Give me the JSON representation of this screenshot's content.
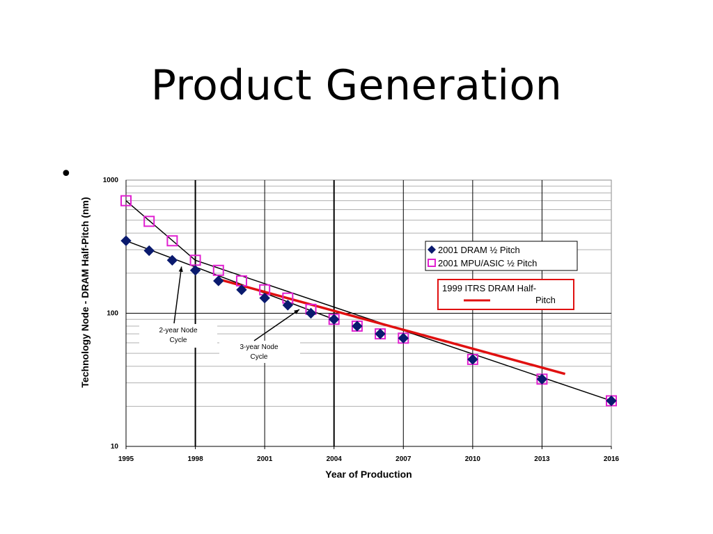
{
  "slide": {
    "title": "Product Generation",
    "bullet_symbol": "•"
  },
  "chart_data": {
    "type": "scatter",
    "xlabel": "Year of Production",
    "ylabel": "Technology Node - DRAM Half-Pitch (nm)",
    "x_ticks": [
      "1995",
      "1998",
      "2001",
      "2004",
      "2007",
      "2010",
      "2013",
      "2016"
    ],
    "y_ticks": [
      "10",
      "100",
      "1000"
    ],
    "xlim": [
      1995,
      2016
    ],
    "ylim": [
      10,
      1000
    ],
    "y_scale": "log",
    "grid": true,
    "legend_position": "right",
    "series": [
      {
        "name": "2001 DRAM ½ Pitch",
        "marker": "diamond",
        "color": "#0a1a6e",
        "points": [
          [
            1995,
            350
          ],
          [
            1996,
            295
          ],
          [
            1997,
            250
          ],
          [
            1998,
            210
          ],
          [
            1999,
            175
          ],
          [
            2000,
            150
          ],
          [
            2001,
            130
          ],
          [
            2002,
            115
          ],
          [
            2003,
            100
          ],
          [
            2004,
            90
          ],
          [
            2005,
            80
          ],
          [
            2006,
            70
          ],
          [
            2007,
            65
          ],
          [
            2010,
            45
          ],
          [
            2013,
            32
          ],
          [
            2016,
            22
          ]
        ]
      },
      {
        "name": "2001 MPU/ASIC ½ Pitch",
        "marker": "open-square",
        "color": "#e020d0",
        "points": [
          [
            1995,
            700
          ],
          [
            1996,
            490
          ],
          [
            1997,
            350
          ],
          [
            1998,
            250
          ],
          [
            1999,
            210
          ],
          [
            2000,
            175
          ],
          [
            2001,
            150
          ],
          [
            2002,
            130
          ],
          [
            2003,
            107
          ],
          [
            2004,
            90
          ],
          [
            2005,
            80
          ],
          [
            2006,
            70
          ],
          [
            2007,
            65
          ],
          [
            2010,
            45
          ],
          [
            2013,
            32
          ],
          [
            2016,
            22
          ]
        ]
      },
      {
        "name": "1999 ITRS DRAM Half-Pitch",
        "marker": "line",
        "color": "#e01010",
        "points": [
          [
            1999,
            180
          ],
          [
            2014,
            35
          ]
        ]
      }
    ],
    "trend_lines": [
      {
        "color": "#000000",
        "points": [
          [
            1995,
            700
          ],
          [
            1998,
            250
          ],
          [
            2016,
            22
          ]
        ]
      },
      {
        "color": "#000000",
        "points": [
          [
            1995,
            350
          ],
          [
            2004,
            90
          ]
        ]
      }
    ],
    "annotations": [
      {
        "lines": [
          "2-year Node",
          "Cycle"
        ],
        "target": [
          1997.4,
          235
        ]
      },
      {
        "lines": [
          "3-year Node",
          "Cycle"
        ],
        "target": [
          2002.5,
          112
        ]
      }
    ],
    "legend_box": {
      "entries": [
        "2001 DRAM ½ Pitch",
        "2001 MPU/ASIC ½ Pitch"
      ]
    },
    "legend_box_red": {
      "lines": [
        "1999 ITRS DRAM Half-",
        "Pitch"
      ]
    }
  }
}
